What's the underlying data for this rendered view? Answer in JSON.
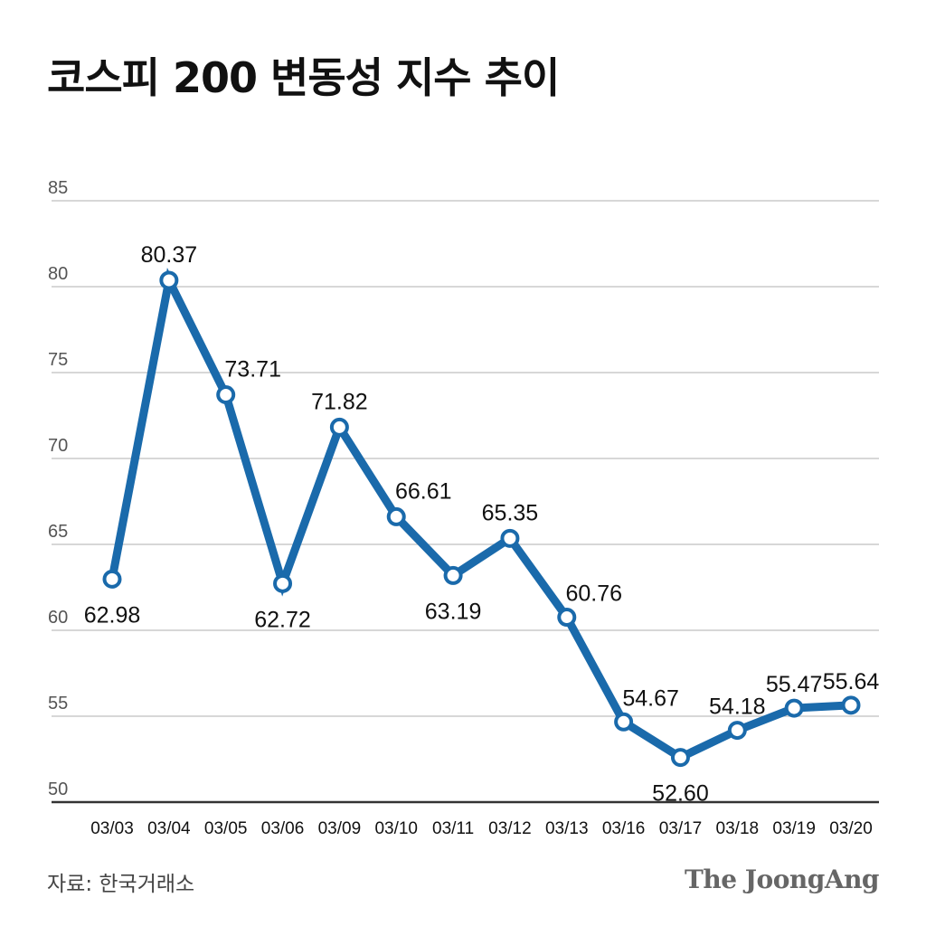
{
  "title": "코스피 200 변동성 지수 추이",
  "source": "자료: 한국거래소",
  "logo": "The JoongAng",
  "colors": {
    "line": "#1a6aab",
    "grid": "#bfbfbf",
    "axis": "#333333",
    "text": "#111111"
  },
  "chart_data": {
    "type": "line",
    "title": "코스피 200 변동성 지수 추이",
    "xlabel": "",
    "ylabel": "",
    "ylim": [
      50,
      85
    ],
    "yticks": [
      50,
      55,
      60,
      65,
      70,
      75,
      80,
      85
    ],
    "grid": true,
    "categories": [
      "03/03",
      "03/04",
      "03/05",
      "03/06",
      "03/09",
      "03/10",
      "03/11",
      "03/12",
      "03/13",
      "03/16",
      "03/17",
      "03/18",
      "03/19",
      "03/20"
    ],
    "values": [
      62.98,
      80.37,
      73.71,
      62.72,
      71.82,
      66.61,
      63.19,
      65.35,
      60.76,
      54.67,
      52.6,
      54.18,
      55.47,
      55.64
    ],
    "data_labels": [
      "62.98",
      "80.37",
      "73.71",
      "62.72",
      "71.82",
      "66.61",
      "63.19",
      "65.35",
      "60.76",
      "54.67",
      "52.60",
      "54.18",
      "55.47",
      "55.64"
    ]
  }
}
